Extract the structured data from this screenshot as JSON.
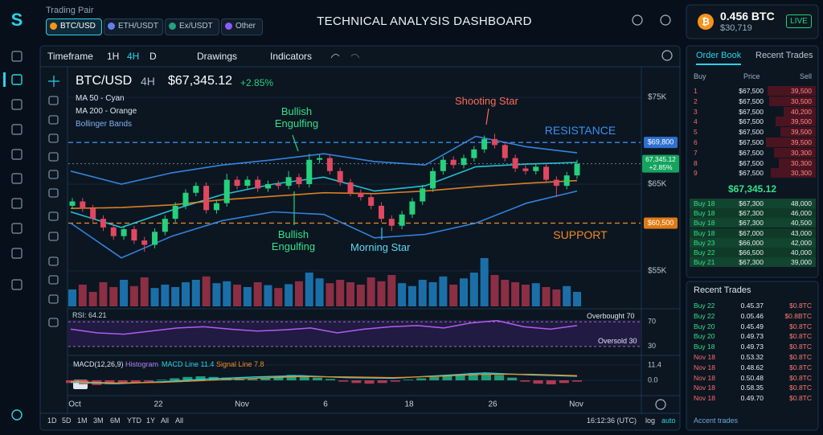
{
  "header": {
    "pair_label": "Trading Pair",
    "pairs": [
      "BTC/USD",
      "ETH/USDT",
      "Ex/USDT",
      "Other"
    ],
    "title": "TECHNICAL ANALYSIS DASHBOARD",
    "balance": "0.456 BTC",
    "balance_usd": "$30,719",
    "status": "LIVE"
  },
  "toolbar": {
    "timeframe": "Timeframe",
    "intervals": [
      "1H",
      "4H",
      "D"
    ],
    "drawings": "Drawings",
    "indicators": "Indicators"
  },
  "chart": {
    "type": "candlestick",
    "symbol": "BTC/USD",
    "interval": "4H",
    "price": "$67,345.12",
    "change": "+2.85%",
    "legend": [
      "MA 50 - Cyan",
      "MA 200 - Orange",
      "Bollinger Bands"
    ],
    "ylim": [
      51000,
      78250
    ],
    "yticks": [
      {
        "value": 75000,
        "label": "$75K"
      },
      {
        "value": 65000,
        "label": "$65K"
      },
      {
        "value": 55000,
        "label": "$55K"
      }
    ],
    "resistance": {
      "value": 69800,
      "label": "$69,800",
      "text": "RESISTANCE"
    },
    "support": {
      "value": 60500,
      "label": "$60,500",
      "text": "SUPPORT"
    },
    "price_marker": {
      "value": 67345.12,
      "label": "67,345.12"
    },
    "annotations": [
      "Bullish Engulfing",
      "Bullish Engulfing",
      "Morning Star",
      "Shooting Star"
    ],
    "candles": [
      [
        62500,
        63400,
        62100,
        63000
      ],
      [
        63000,
        63400,
        61800,
        62200
      ],
      [
        62200,
        62600,
        60600,
        61000
      ],
      [
        61000,
        61400,
        59600,
        60000
      ],
      [
        60000,
        60400,
        58600,
        59000
      ],
      [
        59000,
        60200,
        58600,
        59800
      ],
      [
        59800,
        60200,
        58100,
        58500
      ],
      [
        58500,
        58900,
        57200,
        58000
      ],
      [
        58000,
        59900,
        57600,
        59500
      ],
      [
        59500,
        61400,
        59100,
        61000
      ],
      [
        61000,
        62900,
        60600,
        62500
      ],
      [
        62500,
        64400,
        62100,
        64000
      ],
      [
        64000,
        65200,
        63600,
        64800
      ],
      [
        64800,
        65200,
        61600,
        62000
      ],
      [
        62000,
        63200,
        61600,
        62800
      ],
      [
        62800,
        66200,
        62400,
        65500
      ],
      [
        65500,
        65900,
        64400,
        64800
      ],
      [
        64800,
        65900,
        64400,
        65500
      ],
      [
        65500,
        65900,
        64100,
        64500
      ],
      [
        64500,
        65400,
        64100,
        65000
      ],
      [
        65000,
        65400,
        64400,
        64800
      ],
      [
        64800,
        66500,
        64400,
        65800
      ],
      [
        65800,
        66200,
        64600,
        65000
      ],
      [
        65000,
        68500,
        64600,
        67800
      ],
      [
        67800,
        68400,
        67400,
        68000
      ],
      [
        68000,
        68400,
        66100,
        66500
      ],
      [
        66500,
        66900,
        64800,
        65200
      ],
      [
        65200,
        65600,
        63600,
        64000
      ],
      [
        64000,
        64400,
        63100,
        63500
      ],
      [
        63500,
        63900,
        62100,
        62500
      ],
      [
        62500,
        62900,
        60600,
        61000
      ],
      [
        61000,
        61400,
        59600,
        60200
      ],
      [
        60200,
        61900,
        59800,
        61500
      ],
      [
        61500,
        63400,
        61100,
        63000
      ],
      [
        63000,
        64900,
        62600,
        64500
      ],
      [
        64500,
        66900,
        64100,
        66500
      ],
      [
        66500,
        68200,
        66100,
        67800
      ],
      [
        67800,
        68200,
        66800,
        67200
      ],
      [
        67200,
        68400,
        66800,
        68000
      ],
      [
        68000,
        69400,
        67600,
        69000
      ],
      [
        69000,
        70600,
        68600,
        70200
      ],
      [
        70200,
        70800,
        69100,
        69500
      ],
      [
        69500,
        69900,
        67600,
        68000
      ],
      [
        68000,
        68400,
        66400,
        66800
      ],
      [
        66800,
        67200,
        66100,
        66500
      ],
      [
        66500,
        67400,
        66100,
        67000
      ],
      [
        67000,
        67400,
        65100,
        65500
      ],
      [
        65500,
        65900,
        63500,
        64800
      ],
      [
        64800,
        66400,
        64400,
        66000
      ],
      [
        66000,
        67800,
        65600,
        67345
      ]
    ],
    "volumes": [
      35,
      45,
      30,
      50,
      40,
      55,
      42,
      60,
      38,
      45,
      40,
      50,
      55,
      62,
      48,
      52,
      45,
      40,
      50,
      44,
      38,
      46,
      52,
      70,
      58,
      48,
      55,
      50,
      45,
      60,
      52,
      65,
      48,
      42,
      55,
      50,
      62,
      45,
      58,
      70,
      100,
      65,
      55,
      50,
      45,
      48,
      40,
      35,
      42,
      30
    ],
    "lines": [
      {
        "name": "MA 50",
        "color": "#29d3e8",
        "values": [
          61800,
          60000,
          62000,
          63800,
          65000,
          65800,
          64200,
          64800,
          67000,
          67300,
          67500
        ]
      },
      {
        "name": "MA 200",
        "color": "#f08a24",
        "values": [
          62200,
          62300,
          62600,
          63200,
          63600,
          64000,
          63900,
          64200,
          64700,
          65100,
          65400
        ]
      },
      {
        "name": "BB Upper",
        "color": "#3a8ef0",
        "values": [
          66500,
          65000,
          66300,
          67200,
          67800,
          68500,
          67600,
          67200,
          70500,
          69300,
          68600
        ]
      },
      {
        "name": "BB Lower",
        "color": "#3a8ef0",
        "values": [
          60500,
          56500,
          59000,
          60800,
          61800,
          61500,
          58800,
          59200,
          60500,
          62800,
          64200
        ]
      }
    ],
    "rsi": {
      "label": "RSI: 64.21",
      "overbought": "Overbought 70",
      "oversold": "Oversold 30",
      "ylim": [
        18,
        90
      ],
      "yticks": [
        70,
        30
      ],
      "values": [
        58,
        52,
        50,
        55,
        60,
        62,
        58,
        55,
        57,
        60,
        52,
        58,
        62,
        64,
        60,
        68,
        72,
        62,
        58,
        64
      ]
    },
    "macd": {
      "label": "MACD(12,26,9)",
      "histogram_label": "Histogram",
      "macd_label": "MACD Line 11.4",
      "signal_label": "Signal Line 7.8",
      "ylim": [
        -10.2,
        16.8
      ],
      "yticks": [
        11.4,
        {
          "value": 0,
          "label": "0.0"
        }
      ],
      "histogram": [
        -2,
        -3,
        -3.5,
        -3,
        -2,
        -1.5,
        -1,
        0.5,
        1.5,
        2.5,
        3,
        2.5,
        2,
        1.5,
        1,
        2,
        3,
        4,
        3,
        2,
        1,
        -1,
        -2,
        -2.5,
        -2,
        -1,
        0.5,
        1.5,
        2.5,
        3.5,
        4.5,
        5.5,
        5,
        4,
        2,
        -1,
        -2.5,
        -3,
        -2,
        -1
      ],
      "macd_line": [
        -1.5,
        -2.5,
        -1,
        1,
        2.5,
        3.5,
        2,
        1.5,
        3.5,
        5.5,
        4,
        3
      ],
      "signal_line": [
        -1,
        -2,
        -1.5,
        0,
        1.5,
        2.8,
        2.5,
        2,
        3,
        4.5,
        4.5,
        3.5
      ]
    },
    "x_labels": [
      "Oct",
      "22",
      "Nov",
      "6",
      "18",
      "26",
      "Nov"
    ]
  },
  "footer": {
    "ranges": [
      "1D",
      "5D",
      "1M",
      "3M",
      "6M",
      "YTD",
      "1Y",
      "All",
      "All"
    ],
    "time": "16:12:36 (UTC)",
    "log": "log",
    "auto": "auto"
  },
  "order_book": {
    "tabs": [
      "Order Book",
      "Recent Trades"
    ],
    "columns": [
      "Buy",
      "Price",
      "Sell"
    ],
    "asks": [
      [
        "1",
        "$67,500",
        "39,500"
      ],
      [
        "2",
        "$67,500",
        "30,500"
      ],
      [
        "3",
        "$67,500",
        "40,200"
      ],
      [
        "4",
        "$67,500",
        "39,500"
      ],
      [
        "5",
        "$67,500",
        "39,500"
      ],
      [
        "6",
        "$67,500",
        "39,500"
      ],
      [
        "7",
        "$67,500",
        "30,300"
      ],
      [
        "8",
        "$67,500",
        "30,300"
      ],
      [
        "9",
        "$67,500",
        "30,300"
      ]
    ],
    "bids": [
      [
        "Buy 18",
        "$67,300",
        "48,000"
      ],
      [
        "Buy 18",
        "$67,300",
        "46,000"
      ],
      [
        "Buy 18",
        "$67,300",
        "40,500"
      ],
      [
        "Buy 18",
        "$67,000",
        "43,000"
      ],
      [
        "Buy 23",
        "$66,000",
        "42,000"
      ],
      [
        "Buy 22",
        "$66,500",
        "40,000"
      ],
      [
        "Buy 21",
        "$67,300",
        "39,000"
      ]
    ]
  },
  "recent_trades": {
    "title": "Recent Trades",
    "rows": [
      [
        "Buy 22",
        "0.45.37",
        "$0.8TC"
      ],
      [
        "Buy 22",
        "0.05.46",
        "$0.8BTC"
      ],
      [
        "Buy 20",
        "0.45.49",
        "$0.8TC"
      ],
      [
        "Buy 20",
        "0.49.73",
        "$0.8TC"
      ],
      [
        "Buy 18",
        "0.49.73",
        "$0.8TC"
      ],
      [
        "Nov 18",
        "0.53.32",
        "$0.8TC"
      ],
      [
        "Nov 18",
        "0.48.62",
        "$0.8TC"
      ],
      [
        "Nov 18",
        "0.50.48",
        "$0.8TC"
      ],
      [
        "Nov 18",
        "0.58.35",
        "$0.8TC"
      ],
      [
        "Nov 18",
        "0.49.70",
        "$0.8TC"
      ]
    ],
    "footer": "Accent trades"
  }
}
